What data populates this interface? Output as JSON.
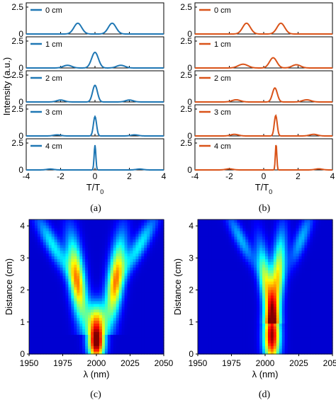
{
  "figure_labels": {
    "a": "(a)",
    "b": "(b)",
    "c": "(c)",
    "d": "(d)"
  },
  "chart_data": [
    {
      "id": "a",
      "type": "line",
      "layout": "stacked-panels",
      "color": "#1f77b4",
      "xlabel": "T/T",
      "xlabel_sub": "0",
      "ylabel": "Intensity (a.u.)",
      "xlim": [
        -4,
        4
      ],
      "xticks": [
        "-4",
        "-2",
        "0",
        "2",
        "4"
      ],
      "ylim": [
        0,
        2.5
      ],
      "yticks": [
        "0",
        "2.5"
      ],
      "panels": [
        {
          "legend": "0 cm",
          "peaks": [
            {
              "t": -1.0,
              "a": 1.0,
              "w": 0.32
            },
            {
              "t": 1.0,
              "a": 1.0,
              "w": 0.32
            }
          ]
        },
        {
          "legend": "1 cm",
          "peaks": [
            {
              "t": -1.6,
              "a": 0.25,
              "w": 0.35
            },
            {
              "t": 0.0,
              "a": 1.45,
              "w": 0.28
            },
            {
              "t": 1.5,
              "a": 0.25,
              "w": 0.35
            }
          ]
        },
        {
          "legend": "2 cm",
          "peaks": [
            {
              "t": -2.0,
              "a": 0.18,
              "w": 0.32
            },
            {
              "t": 0.0,
              "a": 1.55,
              "w": 0.2
            },
            {
              "t": 2.0,
              "a": 0.18,
              "w": 0.32
            }
          ]
        },
        {
          "legend": "3 cm",
          "peaks": [
            {
              "t": -2.2,
              "a": 0.1,
              "w": 0.3
            },
            {
              "t": 0.0,
              "a": 1.8,
              "w": 0.13
            },
            {
              "t": 2.3,
              "a": 0.1,
              "w": 0.3
            }
          ]
        },
        {
          "legend": "4 cm",
          "peaks": [
            {
              "t": -2.6,
              "a": 0.08,
              "w": 0.3
            },
            {
              "t": 0.0,
              "a": 2.3,
              "w": 0.07
            },
            {
              "t": 2.6,
              "a": 0.08,
              "w": 0.3
            }
          ]
        }
      ]
    },
    {
      "id": "b",
      "type": "line",
      "layout": "stacked-panels",
      "color": "#d95319",
      "xlabel": "T/T",
      "xlabel_sub": "0",
      "ylabel": "",
      "xlim": [
        -4,
        4
      ],
      "xticks": [
        "-4",
        "-2",
        "0",
        "2",
        "4"
      ],
      "ylim": [
        0,
        2.5
      ],
      "yticks": [
        "0",
        "2.5"
      ],
      "panels": [
        {
          "legend": "0 cm",
          "peaks": [
            {
              "t": -1.0,
              "a": 1.0,
              "w": 0.32
            },
            {
              "t": 1.0,
              "a": 1.0,
              "w": 0.32
            }
          ]
        },
        {
          "legend": "1 cm",
          "peaks": [
            {
              "t": -1.2,
              "a": 0.35,
              "w": 0.4
            },
            {
              "t": 0.55,
              "a": 0.95,
              "w": 0.3
            },
            {
              "t": 1.9,
              "a": 0.3,
              "w": 0.35
            }
          ]
        },
        {
          "legend": "2 cm",
          "peaks": [
            {
              "t": -1.6,
              "a": 0.2,
              "w": 0.35
            },
            {
              "t": 0.65,
              "a": 1.3,
              "w": 0.2
            },
            {
              "t": 2.5,
              "a": 0.2,
              "w": 0.35
            }
          ]
        },
        {
          "legend": "3 cm",
          "peaks": [
            {
              "t": -1.7,
              "a": 0.15,
              "w": 0.32
            },
            {
              "t": 0.7,
              "a": 1.9,
              "w": 0.12
            },
            {
              "t": 2.9,
              "a": 0.15,
              "w": 0.32
            }
          ]
        },
        {
          "legend": "4 cm",
          "peaks": [
            {
              "t": -2.0,
              "a": 0.1,
              "w": 0.3
            },
            {
              "t": 0.72,
              "a": 2.4,
              "w": 0.06
            },
            {
              "t": 3.2,
              "a": 0.1,
              "w": 0.3
            }
          ]
        }
      ]
    },
    {
      "id": "c",
      "type": "heatmap",
      "colormap": "jet",
      "xlabel": "λ (nm)",
      "ylabel": "Distance (cm)",
      "xlim": [
        1950,
        2050
      ],
      "xticks": [
        "1950",
        "1975",
        "2000",
        "2025",
        "2050"
      ],
      "ylim": [
        0,
        4.2
      ],
      "yticks": [
        "0",
        "1",
        "2",
        "3",
        "4"
      ],
      "features": [
        {
          "kind": "center",
          "x": 2000,
          "z": 0.35,
          "sx": 6,
          "sz": 0.55,
          "a": 1.0
        },
        {
          "kind": "center",
          "x": 2000,
          "z": 1.1,
          "sx": 7,
          "sz": 0.55,
          "a": 0.55
        },
        {
          "kind": "branch",
          "x0": 1990,
          "x1": 1980,
          "z0": 0.9,
          "z1": 4.2,
          "sx": 6,
          "zc": 2.3,
          "sz": 1.3,
          "a": 0.72
        },
        {
          "kind": "branch",
          "x0": 2010,
          "x1": 2020,
          "z0": 0.9,
          "z1": 4.2,
          "sx": 6,
          "zc": 2.3,
          "sz": 1.3,
          "a": 0.72
        },
        {
          "kind": "branch",
          "x0": 1985,
          "x1": 1958,
          "z0": 2.0,
          "z1": 4.2,
          "sx": 6,
          "zc": 3.4,
          "sz": 0.9,
          "a": 0.32
        },
        {
          "kind": "branch",
          "x0": 2015,
          "x1": 2042,
          "z0": 2.0,
          "z1": 4.2,
          "sx": 6,
          "zc": 3.4,
          "sz": 0.9,
          "a": 0.32
        }
      ]
    },
    {
      "id": "d",
      "type": "heatmap",
      "colormap": "jet",
      "xlabel": "λ (nm)",
      "ylabel": "Distance (cm)",
      "xlim": [
        1950,
        2050
      ],
      "xticks": [
        "1950",
        "1975",
        "2000",
        "2025",
        "2050"
      ],
      "ylim": [
        0,
        4.2
      ],
      "yticks": [
        "0",
        "1",
        "2",
        "3",
        "4"
      ],
      "features": [
        {
          "kind": "center",
          "x": 2005,
          "z": 0.6,
          "sx": 6,
          "sz": 0.9,
          "a": 1.0
        },
        {
          "kind": "branch",
          "x0": 2004,
          "x1": 1994,
          "z0": 1.3,
          "z1": 4.2,
          "sx": 5,
          "zc": 2.2,
          "sz": 1.2,
          "a": 0.55
        },
        {
          "kind": "branch",
          "x0": 2007,
          "x1": 2013,
          "z0": 1.3,
          "z1": 4.2,
          "sx": 5,
          "zc": 2.4,
          "sz": 1.3,
          "a": 0.62
        },
        {
          "kind": "branch",
          "x0": 1998,
          "x1": 1975,
          "z0": 2.2,
          "z1": 4.2,
          "sx": 5,
          "zc": 3.6,
          "sz": 0.8,
          "a": 0.25
        },
        {
          "kind": "branch",
          "x0": 2015,
          "x1": 2032,
          "z0": 2.2,
          "z1": 4.2,
          "sx": 5,
          "zc": 3.6,
          "sz": 0.8,
          "a": 0.25
        }
      ]
    }
  ]
}
